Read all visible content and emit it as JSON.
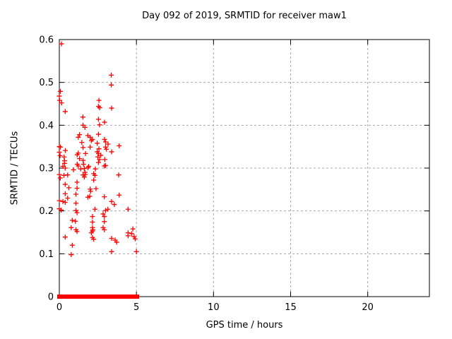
{
  "chart_data": {
    "type": "scatter",
    "title": "Day 092 of 2019, SRMTID for receiver maw1",
    "xlabel": "GPS time / hours",
    "ylabel": "SRMTID / TECUs",
    "xlim": [
      0,
      24
    ],
    "ylim": [
      0,
      0.6
    ],
    "xticks": [
      0,
      5,
      10,
      15,
      20
    ],
    "yticks": [
      0,
      0.1,
      0.2,
      0.3,
      0.4,
      0.5,
      0.6
    ],
    "grid": true,
    "legend": "none",
    "marker": {
      "shape": "plus",
      "color": "#ff0000",
      "size": 7
    },
    "colors": {
      "background": "#ffffff",
      "axis": "#000000",
      "grid": "#a8a8a8",
      "text": "#000000",
      "series": "#ff0000"
    },
    "series": [
      {
        "name": "SRMTID",
        "points": [
          [
            0.14,
            0.59
          ],
          [
            3.37,
            0.517
          ],
          [
            3.37,
            0.494
          ],
          [
            0.07,
            0.479
          ],
          [
            0.0,
            0.468
          ],
          [
            0.02,
            0.458
          ],
          [
            0.15,
            0.452
          ],
          [
            2.57,
            0.458
          ],
          [
            2.54,
            0.444
          ],
          [
            2.62,
            0.441
          ],
          [
            3.39,
            0.44
          ],
          [
            0.38,
            0.432
          ],
          [
            1.53,
            0.419
          ],
          [
            2.54,
            0.414
          ],
          [
            2.93,
            0.407
          ],
          [
            2.61,
            0.401
          ],
          [
            1.54,
            0.4
          ],
          [
            1.66,
            0.395
          ],
          [
            2.54,
            0.379
          ],
          [
            1.31,
            0.378
          ],
          [
            1.85,
            0.376
          ],
          [
            1.23,
            0.372
          ],
          [
            2.0,
            0.372
          ],
          [
            2.15,
            0.367
          ],
          [
            2.93,
            0.367
          ],
          [
            2.08,
            0.364
          ],
          [
            3.0,
            0.361
          ],
          [
            1.46,
            0.36
          ],
          [
            2.46,
            0.358
          ],
          [
            3.16,
            0.356
          ],
          [
            3.88,
            0.352
          ],
          [
            0.0,
            0.35
          ],
          [
            0.07,
            0.349
          ],
          [
            1.54,
            0.348
          ],
          [
            2.0,
            0.349
          ],
          [
            3.0,
            0.349
          ],
          [
            2.57,
            0.345
          ],
          [
            3.05,
            0.344
          ],
          [
            0.39,
            0.341
          ],
          [
            3.39,
            0.338
          ],
          [
            2.46,
            0.338
          ],
          [
            0.0,
            0.337
          ],
          [
            1.23,
            0.335
          ],
          [
            1.7,
            0.334
          ],
          [
            2.54,
            0.334
          ],
          [
            1.16,
            0.331
          ],
          [
            2.69,
            0.33
          ],
          [
            0.05,
            0.329
          ],
          [
            0.31,
            0.326
          ],
          [
            2.5,
            0.326
          ],
          [
            1.31,
            0.322
          ],
          [
            2.61,
            0.32
          ],
          [
            2.95,
            0.32
          ],
          [
            1.54,
            0.318
          ],
          [
            0.34,
            0.317
          ],
          [
            2.54,
            0.313
          ],
          [
            0.34,
            0.311
          ],
          [
            1.16,
            0.309
          ],
          [
            1.57,
            0.309
          ],
          [
            3.0,
            0.306
          ],
          [
            1.23,
            0.305
          ],
          [
            2.92,
            0.305
          ],
          [
            0.23,
            0.304
          ],
          [
            1.91,
            0.304
          ],
          [
            1.85,
            0.301
          ],
          [
            0.38,
            0.3
          ],
          [
            1.62,
            0.299
          ],
          [
            2.34,
            0.298
          ],
          [
            1.38,
            0.298
          ],
          [
            0.92,
            0.296
          ],
          [
            1.66,
            0.29
          ],
          [
            2.23,
            0.287
          ],
          [
            0.0,
            0.285
          ],
          [
            1.69,
            0.285
          ],
          [
            0.54,
            0.284
          ],
          [
            1.54,
            0.284
          ],
          [
            3.85,
            0.284
          ],
          [
            2.31,
            0.283
          ],
          [
            0.3,
            0.283
          ],
          [
            1.62,
            0.279
          ],
          [
            0.06,
            0.277
          ],
          [
            2.23,
            0.272
          ],
          [
            1.15,
            0.267
          ],
          [
            0.38,
            0.262
          ],
          [
            0.62,
            0.254
          ],
          [
            1.15,
            0.253
          ],
          [
            2.38,
            0.252
          ],
          [
            2.0,
            0.251
          ],
          [
            2.03,
            0.246
          ],
          [
            0.38,
            0.24
          ],
          [
            1.08,
            0.239
          ],
          [
            3.88,
            0.237
          ],
          [
            1.97,
            0.234
          ],
          [
            2.92,
            0.233
          ],
          [
            1.85,
            0.232
          ],
          [
            0.54,
            0.23
          ],
          [
            0.0,
            0.224
          ],
          [
            0.23,
            0.222
          ],
          [
            3.39,
            0.222
          ],
          [
            0.38,
            0.22
          ],
          [
            1.08,
            0.218
          ],
          [
            3.57,
            0.215
          ],
          [
            0.0,
            0.205
          ],
          [
            2.31,
            0.204
          ],
          [
            3.15,
            0.204
          ],
          [
            4.46,
            0.204
          ],
          [
            0.12,
            0.202
          ],
          [
            1.08,
            0.201
          ],
          [
            3.0,
            0.201
          ],
          [
            1.15,
            0.196
          ],
          [
            2.84,
            0.193
          ],
          [
            2.15,
            0.187
          ],
          [
            2.92,
            0.187
          ],
          [
            0.84,
            0.178
          ],
          [
            1.04,
            0.176
          ],
          [
            2.92,
            0.175
          ],
          [
            2.15,
            0.174
          ],
          [
            0.77,
            0.161
          ],
          [
            2.15,
            0.161
          ],
          [
            2.84,
            0.161
          ],
          [
            4.77,
            0.158
          ],
          [
            1.08,
            0.156
          ],
          [
            2.18,
            0.156
          ],
          [
            2.92,
            0.156
          ],
          [
            2.15,
            0.153
          ],
          [
            1.15,
            0.152
          ],
          [
            2.08,
            0.149
          ],
          [
            4.46,
            0.149
          ],
          [
            4.69,
            0.147
          ],
          [
            4.46,
            0.142
          ],
          [
            4.85,
            0.14
          ],
          [
            0.38,
            0.139
          ],
          [
            2.15,
            0.138
          ],
          [
            3.39,
            0.136
          ],
          [
            4.92,
            0.135
          ],
          [
            2.23,
            0.134
          ],
          [
            3.62,
            0.132
          ],
          [
            3.72,
            0.127
          ],
          [
            0.84,
            0.12
          ],
          [
            3.39,
            0.105
          ],
          [
            5.0,
            0.105
          ],
          [
            0.77,
            0.098
          ]
        ]
      }
    ],
    "baseline_y": 0,
    "baseline_segments": [
      [
        0.0,
        1.16
      ],
      [
        1.31,
        1.49
      ],
      [
        1.58,
        1.81
      ],
      [
        1.92,
        2.1
      ],
      [
        2.18,
        2.5
      ],
      [
        2.57,
        2.83
      ],
      [
        2.91,
        3.21
      ],
      [
        3.32,
        3.62
      ],
      [
        3.71,
        4.12
      ],
      [
        4.23,
        5.04
      ]
    ]
  }
}
